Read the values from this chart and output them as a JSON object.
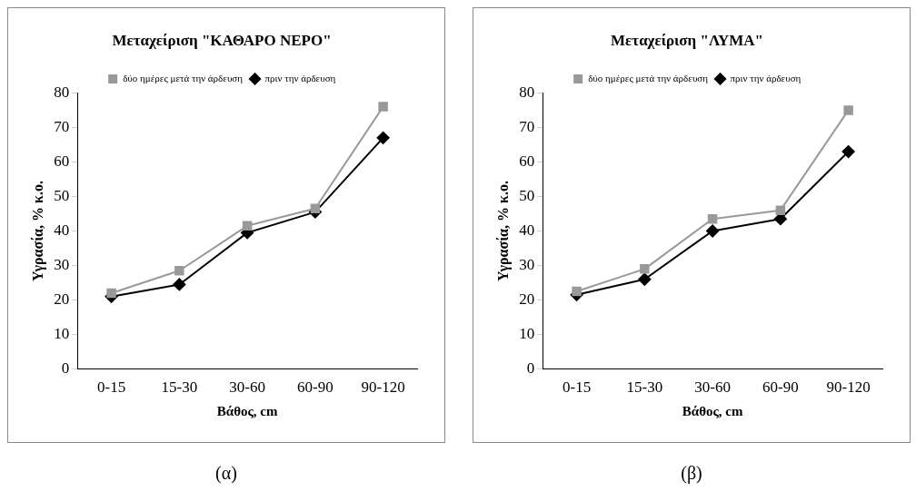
{
  "chart_data": [
    {
      "type": "line",
      "title": "Μεταχείριση \"ΚΑΘΑΡΟ ΝΕΡΟ\"",
      "xlabel": "Βάθος, cm",
      "ylabel": "Υγρασία, % κ.ο.",
      "categories": [
        "0-15",
        "15-30",
        "30-60",
        "60-90",
        "90-120"
      ],
      "series": [
        {
          "name": "πριν την άρδευση",
          "color": "#000000",
          "marker": "diamond",
          "values": [
            21,
            24.5,
            39.5,
            45.5,
            67
          ]
        },
        {
          "name": "δύο ημέρες μετά την άρδευση",
          "color": "#999999",
          "marker": "square",
          "values": [
            22,
            28.5,
            41.5,
            46.5,
            76
          ]
        }
      ],
      "ylim": [
        0,
        80
      ],
      "yticks": [
        0,
        10,
        20,
        30,
        40,
        50,
        60,
        70,
        80
      ],
      "grid": false,
      "legend": "top",
      "annotations": [
        "(α)"
      ]
    },
    {
      "type": "line",
      "title": "Μεταχείριση \"ΛΥΜΑ\"",
      "xlabel": "Βάθος, cm",
      "ylabel": "Υγρασία, % κ.ο.",
      "categories": [
        "0-15",
        "15-30",
        "30-60",
        "60-90",
        "90-120"
      ],
      "series": [
        {
          "name": "πριν την άρδευση",
          "color": "#000000",
          "marker": "diamond",
          "values": [
            21.5,
            26,
            40,
            43.5,
            63
          ]
        },
        {
          "name": "δύο ημέρες μετά την άρδευση",
          "color": "#999999",
          "marker": "square",
          "values": [
            22.5,
            29,
            43.5,
            46,
            75
          ]
        }
      ],
      "ylim": [
        0,
        80
      ],
      "yticks": [
        0,
        10,
        20,
        30,
        40,
        50,
        60,
        70,
        80
      ],
      "grid": false,
      "legend": "top",
      "annotations": [
        "(β)"
      ]
    }
  ]
}
